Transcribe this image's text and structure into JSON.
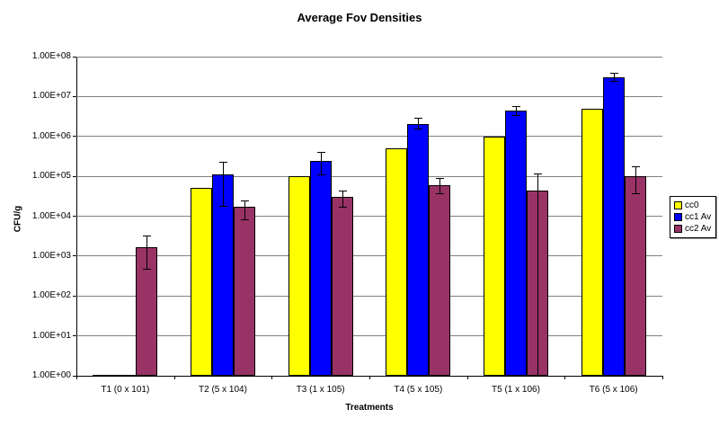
{
  "chart_data": {
    "type": "bar",
    "title": "Average Fov Densities",
    "xlabel": "Treatments",
    "ylabel": "CFU/g",
    "y_scale": "log10",
    "ylim": [
      1,
      100000000
    ],
    "grid": true,
    "legend_position": "right",
    "y_tick_labels": [
      "1.00E+00",
      "1.00E+01",
      "1.00E+02",
      "1.00E+03",
      "1.00E+04",
      "1.00E+05",
      "1.00E+06",
      "1.00E+07",
      "1.00E+08"
    ],
    "categories": [
      "T1 (0 x 101)",
      "T2 (5 x 104)",
      "T3 (1 x 105)",
      "T4 (5 x 105)",
      "T5 (1 x 106)",
      "T6 (5 x 106)"
    ],
    "series": [
      {
        "name": "cc0",
        "color": "#FFFF00",
        "values": [
          0,
          50000,
          100000,
          500000,
          1000000,
          5000000
        ],
        "err_low": [
          null,
          null,
          null,
          null,
          null,
          null
        ],
        "err_high": [
          null,
          null,
          null,
          null,
          null,
          null
        ]
      },
      {
        "name": "cc1 Av",
        "color": "#0000FF",
        "values": [
          0,
          110000,
          240000,
          2000000,
          4500000,
          30000000
        ],
        "err_low": [
          null,
          17000,
          105000,
          1500000,
          3300000,
          24000000
        ],
        "err_high": [
          null,
          230000,
          400000,
          3000000,
          5900000,
          39000000
        ]
      },
      {
        "name": "cc2 Av",
        "color": "#993366",
        "values": [
          1700,
          17000,
          30000,
          60000,
          45000,
          100000
        ],
        "err_low": [
          450,
          8000,
          16000,
          35000,
          1,
          36000
        ],
        "err_high": [
          3200,
          25000,
          45000,
          90000,
          120000,
          175000
        ]
      }
    ]
  },
  "colors": {
    "background": "#FFFFFF",
    "gridline": "#808080",
    "axis": "#000000"
  }
}
